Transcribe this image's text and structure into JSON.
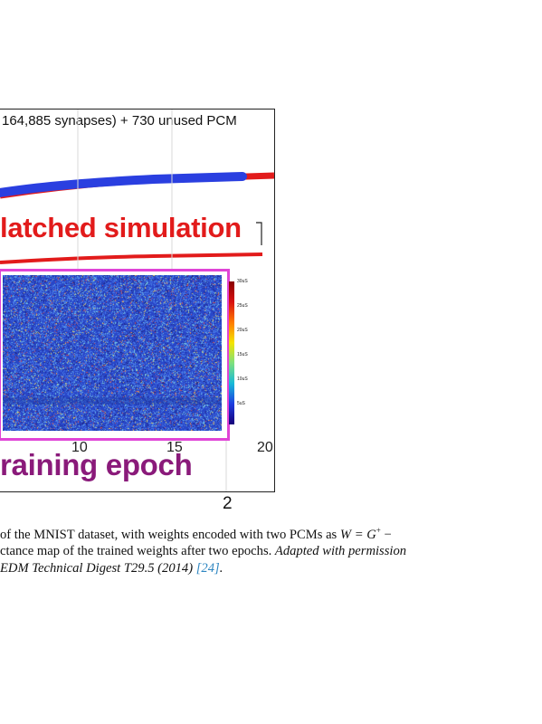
{
  "figure": {
    "top_label": "164,885 synapses) + 730 unused PCM",
    "simulation_label": "latched simulation",
    "axis_label": "raining epoch",
    "tick_labels": [
      "10",
      "15",
      "20"
    ],
    "colorbar_ticks": [
      "30uS",
      "25uS",
      "20uS",
      "15uS",
      "10uS",
      "5uS"
    ],
    "colors": {
      "experiment_curve": "#2a3fe0",
      "simulation_curve": "#e21b1b",
      "heatmap_frame": "#e044d6",
      "axis_label": "#8a1a7a"
    }
  },
  "page_number": "2",
  "caption": {
    "line1_a": "of the MNIST dataset, with weights encoded with two PCMs as ",
    "line1_math": "W = G",
    "line1_sup": "+",
    "line1_tail": " −",
    "line2_a": "ctance map of the trained weights after two epochs. ",
    "line2_italic": "Adapted with permission",
    "line3_italic": "EDM Technical Digest T29.5 (2014) ",
    "line3_cite": "[24]",
    "line3_end": "."
  }
}
